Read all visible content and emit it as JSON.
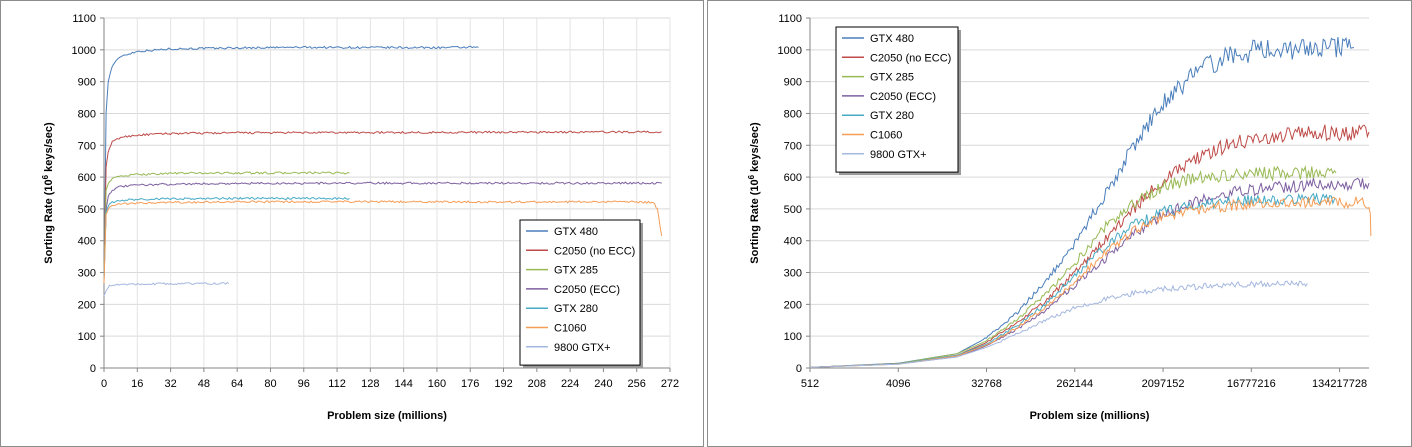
{
  "colors": {
    "GTX 480": "#4a7ebb",
    "C2050 (no ECC)": "#be4b48",
    "GTX 285": "#98b954",
    "C2050 (ECC)": "#7d60a0",
    "GTX 280": "#46aac5",
    "C1060": "#f59d56",
    "9800 GTX+": "#a5b8df"
  },
  "chart_data": [
    {
      "type": "line",
      "xlabel": "Problem size (millions)",
      "ylabel_pre": "Sorting Rate (10",
      "ylabel_sup": "6",
      "ylabel_post": " keys/sec)",
      "xlim": [
        0,
        272
      ],
      "ylim": [
        0,
        1100
      ],
      "x_ticks": [
        "0",
        "16",
        "32",
        "48",
        "64",
        "80",
        "96",
        "112",
        "128",
        "144",
        "160",
        "176",
        "192",
        "208",
        "224",
        "240",
        "256",
        "272"
      ],
      "y_ticks": [
        "0",
        "100",
        "200",
        "300",
        "400",
        "500",
        "600",
        "700",
        "800",
        "900",
        "1000",
        "1100"
      ],
      "grid": true,
      "legend_position": "bottom-right",
      "series": [
        {
          "name": "GTX 480",
          "x": [
            0,
            1,
            2,
            4,
            8,
            16,
            32,
            64,
            96,
            128,
            160,
            180
          ],
          "y": [
            280,
            800,
            900,
            950,
            980,
            995,
            1003,
            1006,
            1008,
            1007,
            1007,
            1008
          ]
        },
        {
          "name": "C2050 (no ECC)",
          "x": [
            0,
            1,
            2,
            4,
            8,
            16,
            32,
            64,
            128,
            192,
            256,
            268
          ],
          "y": [
            300,
            630,
            680,
            710,
            725,
            732,
            737,
            739,
            740,
            741,
            742,
            742
          ]
        },
        {
          "name": "GTX 285",
          "x": [
            0,
            1,
            2,
            4,
            8,
            16,
            32,
            64,
            96,
            118
          ],
          "y": [
            300,
            560,
            580,
            595,
            603,
            608,
            612,
            613,
            613,
            613
          ]
        },
        {
          "name": "C2050 (ECC)",
          "x": [
            0,
            1,
            2,
            4,
            8,
            16,
            32,
            64,
            128,
            192,
            256,
            268
          ],
          "y": [
            280,
            500,
            540,
            560,
            570,
            575,
            578,
            580,
            581,
            581,
            581,
            581
          ]
        },
        {
          "name": "GTX 280",
          "x": [
            0,
            1,
            2,
            4,
            8,
            16,
            32,
            64,
            96,
            118
          ],
          "y": [
            280,
            490,
            510,
            520,
            527,
            530,
            532,
            533,
            533,
            533
          ]
        },
        {
          "name": "C1060",
          "x": [
            0,
            1,
            2,
            4,
            8,
            16,
            32,
            64,
            128,
            192,
            256,
            264,
            266,
            268
          ],
          "y": [
            270,
            480,
            500,
            510,
            515,
            518,
            520,
            522,
            523,
            522,
            522,
            520,
            500,
            415
          ]
        },
        {
          "name": "9800 GTX+",
          "x": [
            0,
            1,
            2,
            4,
            8,
            16,
            32,
            60
          ],
          "y": [
            230,
            245,
            255,
            260,
            262,
            264,
            265,
            266
          ]
        }
      ]
    },
    {
      "type": "line",
      "xscale": "log",
      "xlabel": "Problem size (millions)",
      "ylabel_pre": "Sorting Rate (10",
      "ylabel_sup": "6",
      "ylabel_post": " keys/sec)",
      "xlim": [
        512,
        268435456
      ],
      "ylim": [
        0,
        1100
      ],
      "x_ticks": [
        512,
        4096,
        32768,
        262144,
        2097152,
        16777216,
        134217728
      ],
      "y_ticks": [
        "0",
        "100",
        "200",
        "300",
        "400",
        "500",
        "600",
        "700",
        "800",
        "900",
        "1000",
        "1100"
      ],
      "grid": true,
      "legend_position": "top-left",
      "series": [
        {
          "name": "GTX 480",
          "x": [
            512,
            4096,
            16384,
            32768,
            65536,
            131072,
            262144,
            524288,
            1048576,
            2097152,
            4194304,
            8388608,
            16777216,
            33554432,
            67108864,
            134217728,
            188743680
          ],
          "y": [
            2,
            15,
            45,
            95,
            170,
            270,
            390,
            540,
            700,
            830,
            920,
            970,
            995,
            1003,
            1006,
            1007,
            1007
          ]
        },
        {
          "name": "C2050 (no ECC)",
          "x": [
            512,
            4096,
            16384,
            32768,
            65536,
            131072,
            262144,
            524288,
            1048576,
            2097152,
            4194304,
            8388608,
            16777216,
            33554432,
            67108864,
            134217728,
            268435456
          ],
          "y": [
            2,
            14,
            40,
            80,
            140,
            210,
            300,
            400,
            500,
            590,
            650,
            695,
            720,
            733,
            738,
            740,
            742
          ]
        },
        {
          "name": "GTX 285",
          "x": [
            512,
            4096,
            16384,
            32768,
            65536,
            131072,
            262144,
            524288,
            1048576,
            2097152,
            4194304,
            8388608,
            16777216,
            33554432,
            67108864,
            123731968
          ],
          "y": [
            2,
            14,
            45,
            85,
            150,
            230,
            330,
            440,
            520,
            570,
            595,
            605,
            610,
            612,
            613,
            613
          ]
        },
        {
          "name": "C2050 (ECC)",
          "x": [
            512,
            4096,
            16384,
            32768,
            65536,
            131072,
            262144,
            524288,
            1048576,
            2097152,
            4194304,
            8388608,
            16777216,
            33554432,
            67108864,
            134217728,
            268435456
          ],
          "y": [
            2,
            13,
            35,
            70,
            120,
            180,
            260,
            340,
            420,
            480,
            520,
            545,
            560,
            570,
            576,
            579,
            581
          ]
        },
        {
          "name": "GTX 280",
          "x": [
            512,
            4096,
            16384,
            32768,
            65536,
            131072,
            262144,
            524288,
            1048576,
            2097152,
            4194304,
            8388608,
            16777216,
            33554432,
            67108864,
            123731968
          ],
          "y": [
            2,
            13,
            40,
            75,
            130,
            200,
            290,
            380,
            450,
            490,
            510,
            522,
            528,
            531,
            533,
            533
          ]
        },
        {
          "name": "C1060",
          "x": [
            512,
            4096,
            16384,
            32768,
            65536,
            131072,
            262144,
            524288,
            1048576,
            2097152,
            4194304,
            8388608,
            16777216,
            33554432,
            67108864,
            134217728,
            268435456,
            276824064,
            281018368
          ],
          "y": [
            2,
            12,
            38,
            72,
            125,
            190,
            270,
            360,
            430,
            475,
            495,
            508,
            515,
            519,
            521,
            522,
            520,
            500,
            415
          ]
        },
        {
          "name": "9800 GTX+",
          "x": [
            512,
            4096,
            16384,
            32768,
            65536,
            131072,
            262144,
            524288,
            1048576,
            2097152,
            4194304,
            8388608,
            16777216,
            33554432,
            62914560
          ],
          "y": [
            2,
            12,
            35,
            65,
            105,
            150,
            190,
            215,
            235,
            248,
            255,
            260,
            263,
            265,
            266
          ]
        }
      ]
    }
  ]
}
